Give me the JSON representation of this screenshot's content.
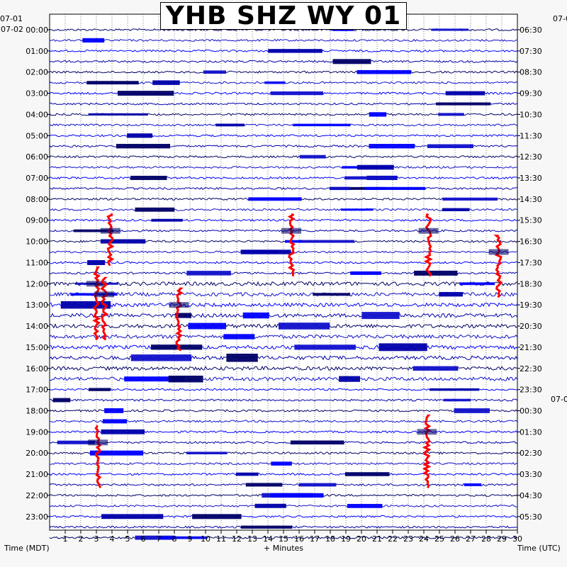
{
  "chart_data": {
    "type": "helicorder",
    "title": "YHB SHZ WY 01",
    "xlabel": "+ Minutes",
    "x_ticks": [
      "1",
      "2",
      "3",
      "4",
      "5",
      "6",
      "7",
      "8",
      "9",
      "10",
      "11",
      "12",
      "13",
      "14",
      "15",
      "16",
      "17",
      "18",
      "19",
      "20",
      "21",
      "22",
      "23",
      "24",
      "25",
      "26",
      "27",
      "28",
      "29",
      "30"
    ],
    "xlim": [
      0,
      30
    ],
    "left_axis": {
      "label": "Time (MDT)",
      "start_date": "07-01",
      "date_at_first_row": "07-02",
      "ticks": [
        "00:00",
        "01:00",
        "02:00",
        "03:00",
        "04:00",
        "05:00",
        "06:00",
        "07:00",
        "08:00",
        "09:00",
        "10:00",
        "11:00",
        "12:00",
        "13:00",
        "14:00",
        "15:00",
        "16:00",
        "17:00",
        "18:00",
        "19:00",
        "20:00",
        "21:00",
        "22:00",
        "23:00"
      ]
    },
    "right_axis": {
      "label": "Time (UTC)",
      "start_date": "07-0",
      "date_change_label": "07-0",
      "ticks": [
        "06:30",
        "07:30",
        "08:30",
        "09:30",
        "10:30",
        "11:30",
        "12:30",
        "13:30",
        "14:30",
        "15:30",
        "16:30",
        "17:30",
        "18:30",
        "19:30",
        "20:30",
        "21:30",
        "22:30",
        "23:30",
        "00:30",
        "01:30",
        "02:30",
        "03:30",
        "04:30",
        "05:30"
      ]
    },
    "trace_colors": [
      "#000066",
      "#1111cc",
      "#0000ff",
      "#0000aa"
    ],
    "event_color": "#ff0000",
    "grid": "dotted",
    "events": [
      {
        "minute": 3.9,
        "row_start": 18,
        "row_end": 22
      },
      {
        "minute": 15.5,
        "row_start": 18,
        "row_end": 23
      },
      {
        "minute": 24.3,
        "row_start": 18,
        "row_end": 23
      },
      {
        "minute": 28.8,
        "row_start": 20,
        "row_end": 25
      },
      {
        "minute": 3.0,
        "row_start": 23,
        "row_end": 29
      },
      {
        "minute": 3.5,
        "row_start": 24,
        "row_end": 29
      },
      {
        "minute": 8.3,
        "row_start": 25,
        "row_end": 30
      },
      {
        "minute": 3.1,
        "row_start": 38,
        "row_end": 43
      },
      {
        "minute": 24.2,
        "row_start": 37,
        "row_end": 43
      }
    ]
  }
}
